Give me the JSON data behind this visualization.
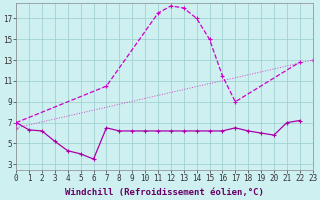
{
  "xlabel": "Windchill (Refroidissement éolien,°C)",
  "bg_color": "#cff0f0",
  "line1_x": [
    0,
    1,
    2,
    3,
    4,
    5,
    6,
    7,
    8,
    9,
    10,
    11,
    12,
    13,
    14,
    15,
    16,
    17,
    18,
    19,
    20,
    21,
    22
  ],
  "line1_y": [
    7.0,
    6.3,
    6.2,
    5.2,
    4.3,
    4.0,
    3.5,
    6.5,
    6.2,
    6.2,
    6.2,
    6.2,
    6.2,
    6.2,
    6.2,
    6.2,
    6.2,
    6.5,
    6.2,
    6.0,
    5.8,
    7.0,
    7.2
  ],
  "line2_x": [
    0,
    7,
    11,
    12,
    13,
    14,
    15,
    16,
    17,
    22
  ],
  "line2_y": [
    7.0,
    10.5,
    17.5,
    18.2,
    18.0,
    17.0,
    15.0,
    11.5,
    9.0,
    12.8
  ],
  "line3_x": [
    0,
    23
  ],
  "line3_y": [
    6.5,
    13.0
  ],
  "color1": "#aa00aa",
  "color2": "#cc00cc",
  "color3": "#cc44cc",
  "grid_color": "#99cccc",
  "xticks": [
    0,
    1,
    2,
    3,
    4,
    5,
    6,
    7,
    8,
    9,
    10,
    11,
    12,
    13,
    14,
    15,
    16,
    17,
    18,
    19,
    20,
    21,
    22,
    23
  ],
  "yticks": [
    3,
    5,
    7,
    9,
    11,
    13,
    15,
    17
  ],
  "xlim": [
    0,
    23
  ],
  "ylim": [
    2.5,
    18.5
  ],
  "tick_fontsize": 5.5,
  "xlabel_fontsize": 6.5
}
